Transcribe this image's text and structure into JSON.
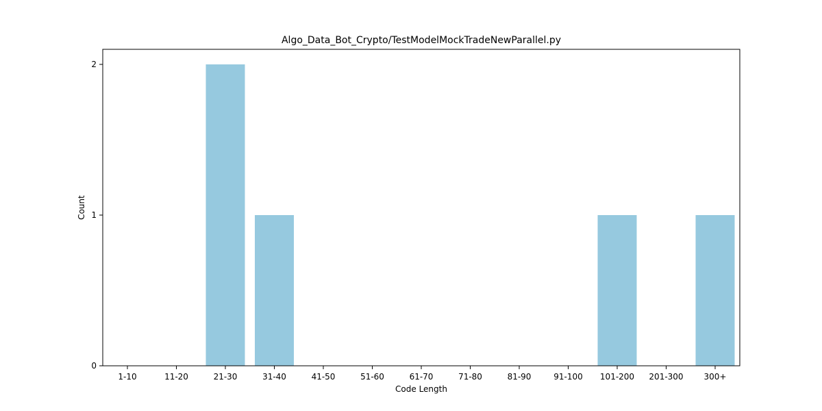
{
  "chart_data": {
    "type": "bar",
    "title": "Algo_Data_Bot_Crypto/TestModelMockTradeNewParallel.py",
    "xlabel": "Code Length",
    "ylabel": "Count",
    "categories": [
      "1-10",
      "11-20",
      "21-30",
      "31-40",
      "41-50",
      "51-60",
      "61-70",
      "71-80",
      "81-90",
      "91-100",
      "101-200",
      "201-300",
      "300+"
    ],
    "values": [
      0,
      0,
      2,
      1,
      0,
      0,
      0,
      0,
      0,
      0,
      1,
      0,
      1
    ],
    "ylim": [
      0,
      2.1
    ],
    "yticks": [
      0,
      1,
      2
    ],
    "bar_color": "#96c9df",
    "grid": false,
    "legend": "none"
  }
}
